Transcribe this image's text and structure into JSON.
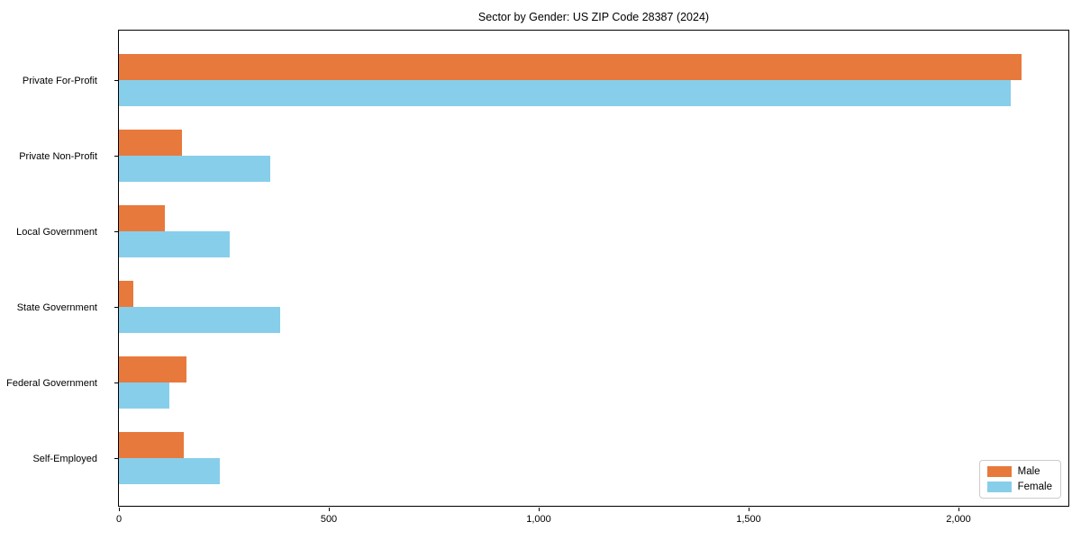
{
  "title": "Sector by Gender: US ZIP Code 28387 (2024)",
  "chart_data": {
    "type": "bar",
    "orientation": "horizontal",
    "title": "Sector by Gender: US ZIP Code 28387 (2024)",
    "categories": [
      "Private For-Profit",
      "Private Non-Profit",
      "Local Government",
      "State Government",
      "Federal Government",
      "Self-Employed"
    ],
    "series": [
      {
        "name": "Male",
        "color": "#e8793c",
        "values": [
          2150,
          150,
          110,
          35,
          160,
          155
        ]
      },
      {
        "name": "Female",
        "color": "#87ceeb",
        "values": [
          2125,
          360,
          265,
          385,
          120,
          240
        ]
      }
    ],
    "xlabel": "",
    "ylabel": "",
    "xlim": [
      0,
      2266
    ],
    "xticks": {
      "values": [
        0,
        500,
        1000,
        1500,
        2000
      ],
      "labels": [
        "0",
        "500",
        "1,000",
        "1,500",
        "2,000"
      ]
    },
    "grid": false,
    "legend": {
      "position": "lower right",
      "entries": [
        "Male",
        "Female"
      ]
    }
  },
  "colors": {
    "male": "#e8793c",
    "female": "#87ceeb",
    "axis": "#000000",
    "legend_border": "#cccccc",
    "background": "#ffffff"
  }
}
